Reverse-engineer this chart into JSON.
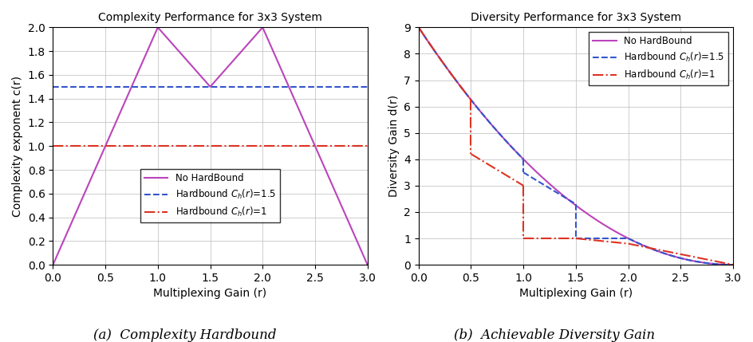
{
  "left_title": "Complexity Performance for 3x3 System",
  "right_title": "Diversity Performance for 3x3 System",
  "xlabel": "Multiplexing Gain (r)",
  "left_ylabel": "Complexity exponent c(r)",
  "right_ylabel": "Diversity Gain d(r)",
  "left_xlim": [
    0,
    3
  ],
  "left_ylim": [
    0,
    2
  ],
  "right_xlim": [
    0,
    3
  ],
  "right_ylim": [
    0,
    9
  ],
  "left_xticks": [
    0,
    0.5,
    1,
    1.5,
    2,
    2.5,
    3
  ],
  "left_yticks": [
    0,
    0.2,
    0.4,
    0.6,
    0.8,
    1.0,
    1.2,
    1.4,
    1.6,
    1.8,
    2.0
  ],
  "right_xticks": [
    0,
    0.5,
    1,
    1.5,
    2,
    2.5,
    3
  ],
  "right_yticks": [
    0,
    1,
    2,
    3,
    4,
    5,
    6,
    7,
    8,
    9
  ],
  "color_magenta": "#BB44BB",
  "color_blue": "#3355CC",
  "color_red": "#DD3322",
  "subtitle_a": "(a)  Complexity Hardbound",
  "subtitle_b": "(b)  Achievable Diversity Gain",
  "legend_a_labels": [
    "No HardBound",
    "Hardbound C_h(r)=1.5",
    "Hardbound C_h(r)=1"
  ],
  "legend_b_labels": [
    "No HardBound",
    "Hardbound C_h(r)=1.5",
    "Hardbound C_h(r)=1"
  ]
}
